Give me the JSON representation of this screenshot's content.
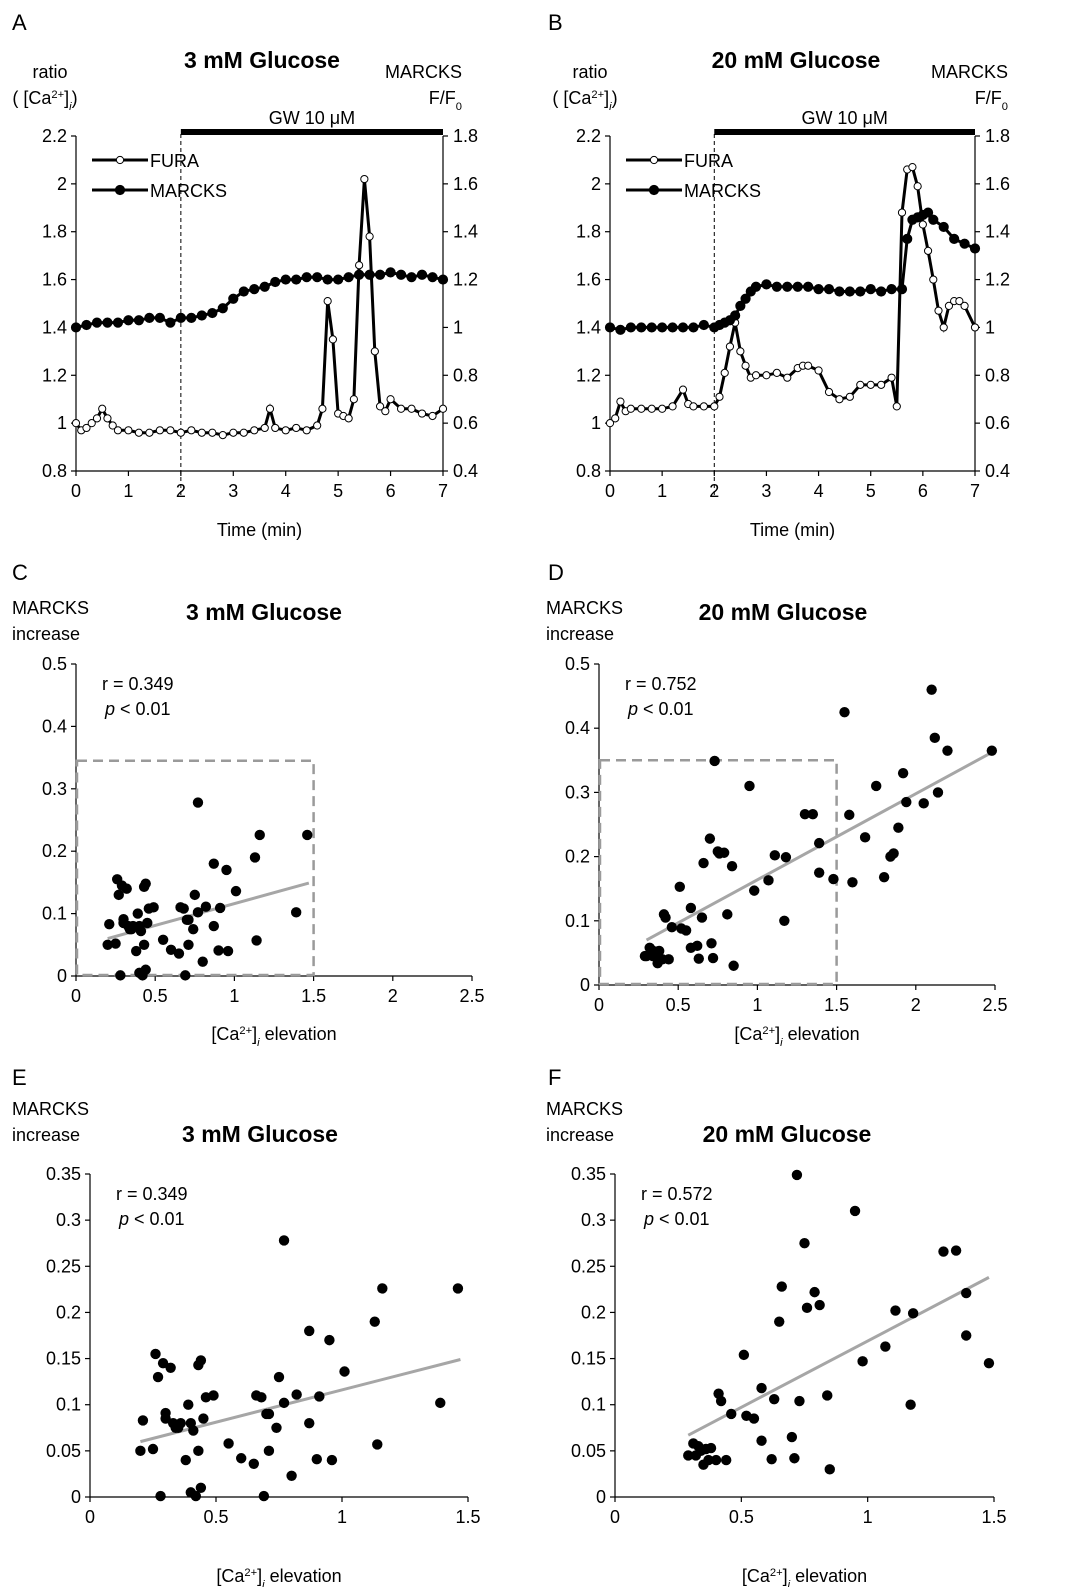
{
  "chart_data": [
    {
      "panel": "A",
      "type": "line",
      "title": "3 mM Glucose",
      "ylabel": "ratio\n( [Ca2+]i)",
      "ylabel_right": "MARCKS\nF/F0",
      "xlabel": "Time (min)",
      "xlim": [
        0,
        7
      ],
      "ylim": [
        0.8,
        2.2
      ],
      "ylim_right": [
        0.4,
        1.8
      ],
      "xticks": [
        0,
        1,
        2,
        3,
        4,
        5,
        6,
        7
      ],
      "yticks": [
        0.8,
        1,
        1.2,
        1.4,
        1.6,
        1.8,
        2,
        2.2
      ],
      "yticks_right": [
        0.4,
        0.6,
        0.8,
        1,
        1.2,
        1.4,
        1.6,
        1.8
      ],
      "treatment_bar": {
        "label": "GW 10 μM",
        "x": [
          2,
          7
        ]
      },
      "vline_x": 2,
      "legend": "top-left",
      "series": [
        {
          "name": "FURA",
          "axis": "left",
          "marker": "open",
          "x": [
            0.0,
            0.1,
            0.2,
            0.3,
            0.4,
            0.5,
            0.6,
            0.7,
            0.8,
            1.0,
            1.2,
            1.4,
            1.6,
            1.8,
            2.0,
            2.2,
            2.4,
            2.6,
            2.8,
            3.0,
            3.2,
            3.4,
            3.6,
            3.7,
            3.8,
            4.0,
            4.2,
            4.4,
            4.6,
            4.7,
            4.8,
            4.9,
            5.0,
            5.1,
            5.2,
            5.3,
            5.4,
            5.5,
            5.6,
            5.7,
            5.8,
            5.9,
            6.0,
            6.2,
            6.4,
            6.6,
            6.8,
            7.0
          ],
          "y": [
            1.0,
            0.97,
            0.98,
            1.0,
            1.02,
            1.06,
            1.02,
            0.99,
            0.97,
            0.97,
            0.96,
            0.96,
            0.97,
            0.97,
            0.96,
            0.97,
            0.96,
            0.96,
            0.95,
            0.96,
            0.96,
            0.97,
            0.98,
            1.06,
            0.98,
            0.97,
            0.98,
            0.97,
            0.99,
            1.06,
            1.51,
            1.35,
            1.04,
            1.03,
            1.02,
            1.1,
            1.66,
            2.02,
            1.78,
            1.3,
            1.07,
            1.05,
            1.1,
            1.06,
            1.06,
            1.04,
            1.03,
            1.06
          ]
        },
        {
          "name": "MARCKS",
          "axis": "right",
          "marker": "filled",
          "x": [
            0.0,
            0.2,
            0.4,
            0.6,
            0.8,
            1.0,
            1.2,
            1.4,
            1.6,
            1.8,
            2.0,
            2.2,
            2.4,
            2.6,
            2.8,
            3.0,
            3.2,
            3.4,
            3.6,
            3.8,
            4.0,
            4.2,
            4.4,
            4.6,
            4.8,
            5.0,
            5.2,
            5.4,
            5.6,
            5.8,
            6.0,
            6.2,
            6.4,
            6.6,
            6.8,
            7.0
          ],
          "y": [
            1.0,
            1.01,
            1.02,
            1.02,
            1.02,
            1.03,
            1.03,
            1.04,
            1.04,
            1.02,
            1.04,
            1.04,
            1.05,
            1.06,
            1.08,
            1.12,
            1.15,
            1.16,
            1.17,
            1.19,
            1.2,
            1.2,
            1.21,
            1.21,
            1.2,
            1.2,
            1.21,
            1.22,
            1.22,
            1.22,
            1.23,
            1.22,
            1.21,
            1.22,
            1.21,
            1.2
          ]
        }
      ]
    },
    {
      "panel": "B",
      "type": "line",
      "title": "20 mM Glucose",
      "ylabel": "ratio\n( [Ca2+]i)",
      "ylabel_right": "MARCKS\nF/F0",
      "xlabel": "Time (min)",
      "xlim": [
        0,
        7
      ],
      "ylim": [
        0.8,
        2.2
      ],
      "ylim_right": [
        0.4,
        1.8
      ],
      "xticks": [
        0,
        1,
        2,
        3,
        4,
        5,
        6,
        7
      ],
      "yticks": [
        0.8,
        1,
        1.2,
        1.4,
        1.6,
        1.8,
        2,
        2.2
      ],
      "yticks_right": [
        0.4,
        0.6,
        0.8,
        1,
        1.2,
        1.4,
        1.6,
        1.8
      ],
      "treatment_bar": {
        "label": "GW 10 μM",
        "x": [
          2,
          7
        ]
      },
      "vline_x": 2,
      "legend": "top-left",
      "series": [
        {
          "name": "FURA",
          "axis": "left",
          "marker": "open",
          "x": [
            0.0,
            0.1,
            0.2,
            0.3,
            0.4,
            0.6,
            0.8,
            1.0,
            1.2,
            1.4,
            1.5,
            1.6,
            1.8,
            2.0,
            2.1,
            2.2,
            2.3,
            2.4,
            2.5,
            2.6,
            2.7,
            2.8,
            3.0,
            3.2,
            3.4,
            3.6,
            3.7,
            3.8,
            4.0,
            4.2,
            4.4,
            4.6,
            4.8,
            5.0,
            5.2,
            5.4,
            5.5,
            5.6,
            5.7,
            5.8,
            5.9,
            6.0,
            6.1,
            6.2,
            6.3,
            6.4,
            6.5,
            6.6,
            6.7,
            6.8,
            7.0
          ],
          "y": [
            1.0,
            1.02,
            1.09,
            1.05,
            1.06,
            1.06,
            1.06,
            1.06,
            1.07,
            1.14,
            1.08,
            1.07,
            1.07,
            1.07,
            1.11,
            1.21,
            1.32,
            1.42,
            1.3,
            1.24,
            1.19,
            1.2,
            1.2,
            1.21,
            1.19,
            1.23,
            1.24,
            1.24,
            1.22,
            1.13,
            1.1,
            1.11,
            1.16,
            1.16,
            1.16,
            1.19,
            1.07,
            1.88,
            2.06,
            2.07,
            1.99,
            1.83,
            1.72,
            1.6,
            1.47,
            1.4,
            1.49,
            1.51,
            1.51,
            1.49,
            1.4
          ]
        },
        {
          "name": "MARCKS",
          "axis": "right",
          "marker": "filled",
          "x": [
            0.0,
            0.2,
            0.4,
            0.6,
            0.8,
            1.0,
            1.2,
            1.4,
            1.6,
            1.8,
            2.0,
            2.1,
            2.2,
            2.3,
            2.4,
            2.5,
            2.6,
            2.7,
            2.8,
            3.0,
            3.2,
            3.4,
            3.6,
            3.8,
            4.0,
            4.2,
            4.4,
            4.6,
            4.8,
            5.0,
            5.2,
            5.4,
            5.6,
            5.7,
            5.8,
            5.9,
            6.0,
            6.1,
            6.2,
            6.4,
            6.6,
            6.8,
            7.0
          ],
          "y": [
            1.0,
            0.99,
            1.0,
            1.0,
            1.0,
            1.0,
            1.0,
            1.0,
            1.0,
            1.01,
            1.0,
            1.01,
            1.02,
            1.03,
            1.05,
            1.09,
            1.12,
            1.15,
            1.17,
            1.18,
            1.17,
            1.17,
            1.17,
            1.17,
            1.16,
            1.16,
            1.15,
            1.15,
            1.15,
            1.16,
            1.15,
            1.16,
            1.16,
            1.37,
            1.45,
            1.46,
            1.47,
            1.48,
            1.45,
            1.42,
            1.37,
            1.35,
            1.33
          ]
        }
      ]
    },
    {
      "panel": "C",
      "type": "scatter",
      "title": "3 mM Glucose",
      "ylabel": "MARCKS\nincrease",
      "xlabel": "[Ca2+]i elevation",
      "xlim": [
        0,
        2.5
      ],
      "ylim": [
        0,
        0.5
      ],
      "xticks": [
        0,
        0.5,
        1,
        1.5,
        2,
        2.5
      ],
      "yticks": [
        0,
        0.1,
        0.2,
        0.3,
        0.4,
        0.5
      ],
      "annotation": [
        "r = 0.349",
        "p < 0.01"
      ],
      "trend": {
        "x": [
          0.2,
          1.47
        ],
        "y": [
          0.06,
          0.149
        ]
      },
      "box": {
        "x": [
          0,
          1.5
        ],
        "y": [
          0,
          0.345
        ]
      },
      "x": [
        0.2,
        0.21,
        0.25,
        0.26,
        0.27,
        0.28,
        0.29,
        0.3,
        0.3,
        0.32,
        0.33,
        0.34,
        0.35,
        0.36,
        0.38,
        0.39,
        0.4,
        0.4,
        0.41,
        0.42,
        0.43,
        0.43,
        0.44,
        0.44,
        0.45,
        0.46,
        0.49,
        0.55,
        0.6,
        0.65,
        0.66,
        0.68,
        0.69,
        0.7,
        0.71,
        0.71,
        0.74,
        0.75,
        0.77,
        0.77,
        0.8,
        0.82,
        0.87,
        0.87,
        0.9,
        0.91,
        0.95,
        0.96,
        1.01,
        1.13,
        1.14,
        1.16,
        1.39,
        1.46
      ],
      "y": [
        0.05,
        0.083,
        0.052,
        0.155,
        0.13,
        0.001,
        0.145,
        0.085,
        0.091,
        0.14,
        0.08,
        0.075,
        0.075,
        0.08,
        0.04,
        0.1,
        0.005,
        0.08,
        0.072,
        0.001,
        0.05,
        0.143,
        0.148,
        0.01,
        0.085,
        0.108,
        0.11,
        0.058,
        0.042,
        0.036,
        0.11,
        0.108,
        0.001,
        0.09,
        0.09,
        0.05,
        0.075,
        0.13,
        0.278,
        0.102,
        0.023,
        0.111,
        0.08,
        0.18,
        0.041,
        0.109,
        0.17,
        0.04,
        0.136,
        0.19,
        0.057,
        0.226,
        0.102,
        0.226
      ]
    },
    {
      "panel": "D",
      "type": "scatter",
      "title": "20 mM Glucose",
      "ylabel": "MARCKS\nincrease",
      "xlabel": "[Ca2+]i elevation",
      "xlim": [
        0,
        2.5
      ],
      "ylim": [
        0,
        0.5
      ],
      "xticks": [
        0,
        0.5,
        1,
        1.5,
        2,
        2.5
      ],
      "yticks": [
        0,
        0.1,
        0.2,
        0.3,
        0.4,
        0.5
      ],
      "annotation": [
        "r = 0.752",
        "p < 0.01"
      ],
      "trend": {
        "x": [
          0.3,
          2.5
        ],
        "y": [
          0.07,
          0.365
        ]
      },
      "box": {
        "x": [
          0,
          1.5
        ],
        "y": [
          0,
          0.35
        ]
      },
      "x": [
        0.29,
        0.3,
        0.32,
        0.33,
        0.34,
        0.35,
        0.36,
        0.37,
        0.38,
        0.4,
        0.41,
        0.42,
        0.44,
        0.46,
        0.51,
        0.52,
        0.55,
        0.58,
        0.58,
        0.62,
        0.63,
        0.65,
        0.66,
        0.7,
        0.71,
        0.72,
        0.73,
        0.75,
        0.76,
        0.79,
        0.81,
        0.84,
        0.85,
        0.95,
        0.98,
        1.07,
        1.11,
        1.17,
        1.18,
        1.3,
        1.35,
        1.39,
        1.39,
        1.48,
        1.55,
        1.58,
        1.6,
        1.68,
        1.75,
        1.8,
        1.84,
        1.86,
        1.89,
        1.92,
        1.94,
        2.05,
        2.1,
        2.12,
        2.14,
        2.2,
        2.48
      ],
      "y": [
        0.045,
        0.045,
        0.058,
        0.055,
        0.045,
        0.048,
        0.052,
        0.034,
        0.053,
        0.04,
        0.11,
        0.105,
        0.04,
        0.09,
        0.153,
        0.088,
        0.085,
        0.058,
        0.12,
        0.061,
        0.041,
        0.105,
        0.19,
        0.228,
        0.065,
        0.042,
        0.349,
        0.208,
        0.205,
        0.206,
        0.11,
        0.185,
        0.03,
        0.31,
        0.147,
        0.163,
        0.202,
        0.1,
        0.199,
        0.266,
        0.266,
        0.221,
        0.175,
        0.165,
        0.425,
        0.265,
        0.16,
        0.23,
        0.31,
        0.168,
        0.2,
        0.205,
        0.245,
        0.33,
        0.285,
        0.283,
        0.46,
        0.385,
        0.3,
        0.365,
        0.365
      ]
    },
    {
      "panel": "E",
      "type": "scatter",
      "title": "3 mM Glucose",
      "ylabel": "MARCKS\nincrease",
      "xlabel": "[Ca2+]i elevation",
      "xlim": [
        0,
        1.5
      ],
      "ylim": [
        0,
        0.35
      ],
      "xticks": [
        0,
        0.5,
        1,
        1.5
      ],
      "yticks": [
        0,
        0.05,
        0.1,
        0.15,
        0.2,
        0.25,
        0.3,
        0.35
      ],
      "annotation": [
        "r = 0.349",
        "p < 0.01"
      ],
      "trend": {
        "x": [
          0.2,
          1.47
        ],
        "y": [
          0.06,
          0.149
        ]
      },
      "x": [
        0.2,
        0.21,
        0.25,
        0.26,
        0.27,
        0.28,
        0.29,
        0.3,
        0.3,
        0.32,
        0.33,
        0.34,
        0.35,
        0.36,
        0.38,
        0.39,
        0.4,
        0.4,
        0.41,
        0.42,
        0.43,
        0.43,
        0.44,
        0.44,
        0.45,
        0.46,
        0.49,
        0.55,
        0.6,
        0.65,
        0.66,
        0.68,
        0.69,
        0.7,
        0.71,
        0.71,
        0.74,
        0.75,
        0.77,
        0.77,
        0.8,
        0.82,
        0.87,
        0.87,
        0.9,
        0.91,
        0.95,
        0.96,
        1.01,
        1.13,
        1.14,
        1.16,
        1.39,
        1.46
      ],
      "y": [
        0.05,
        0.083,
        0.052,
        0.155,
        0.13,
        0.001,
        0.145,
        0.085,
        0.091,
        0.14,
        0.08,
        0.075,
        0.075,
        0.08,
        0.04,
        0.1,
        0.005,
        0.08,
        0.072,
        0.001,
        0.05,
        0.143,
        0.148,
        0.01,
        0.085,
        0.108,
        0.11,
        0.058,
        0.042,
        0.036,
        0.11,
        0.108,
        0.001,
        0.09,
        0.09,
        0.05,
        0.075,
        0.13,
        0.278,
        0.102,
        0.023,
        0.111,
        0.08,
        0.18,
        0.041,
        0.109,
        0.17,
        0.04,
        0.136,
        0.19,
        0.057,
        0.226,
        0.102,
        0.226
      ]
    },
    {
      "panel": "F",
      "type": "scatter",
      "title": "20 mM Glucose",
      "ylabel": "MARCKS\nincrease",
      "xlabel": "[Ca2+]i elevation",
      "xlim": [
        0,
        1.5
      ],
      "ylim": [
        0,
        0.35
      ],
      "xticks": [
        0,
        0.5,
        1,
        1.5
      ],
      "yticks": [
        0,
        0.05,
        0.1,
        0.15,
        0.2,
        0.25,
        0.3,
        0.35
      ],
      "annotation": [
        "r = 0.572",
        "p < 0.01"
      ],
      "trend": {
        "x": [
          0.29,
          1.48
        ],
        "y": [
          0.067,
          0.238
        ]
      },
      "x": [
        0.29,
        0.31,
        0.32,
        0.33,
        0.34,
        0.35,
        0.36,
        0.37,
        0.38,
        0.4,
        0.41,
        0.42,
        0.44,
        0.46,
        0.51,
        0.52,
        0.55,
        0.58,
        0.58,
        0.62,
        0.63,
        0.65,
        0.66,
        0.7,
        0.71,
        0.72,
        0.73,
        0.75,
        0.76,
        0.79,
        0.81,
        0.84,
        0.85,
        0.95,
        0.98,
        1.07,
        1.11,
        1.17,
        1.18,
        1.3,
        1.35,
        1.39,
        1.39,
        1.48
      ],
      "y": [
        0.045,
        0.058,
        0.045,
        0.055,
        0.05,
        0.035,
        0.052,
        0.04,
        0.053,
        0.04,
        0.112,
        0.104,
        0.04,
        0.09,
        0.154,
        0.088,
        0.085,
        0.118,
        0.061,
        0.041,
        0.106,
        0.19,
        0.228,
        0.065,
        0.042,
        0.349,
        0.104,
        0.275,
        0.205,
        0.222,
        0.208,
        0.11,
        0.03,
        0.31,
        0.147,
        0.163,
        0.202,
        0.1,
        0.199,
        0.266,
        0.267,
        0.221,
        0.175,
        0.145
      ]
    }
  ]
}
